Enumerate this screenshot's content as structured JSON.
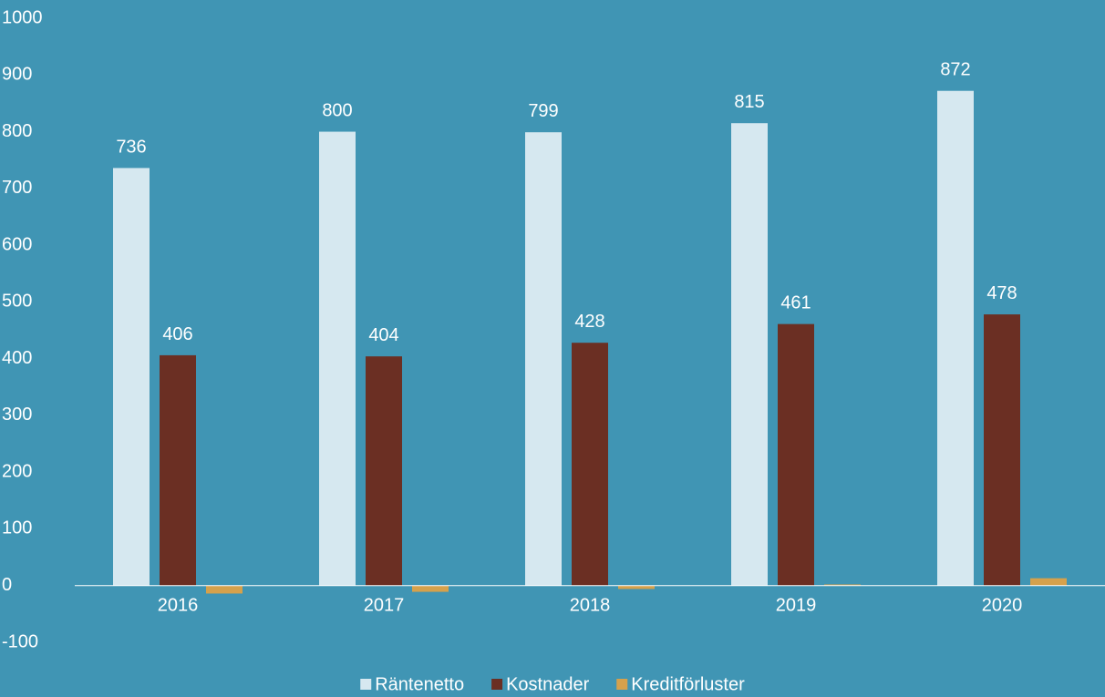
{
  "chart_data": {
    "type": "bar",
    "categories": [
      "2016",
      "2017",
      "2018",
      "2019",
      "2020"
    ],
    "series": [
      {
        "name": "Räntenetto",
        "values": [
          736,
          800,
          799,
          815,
          872
        ],
        "color": "#d6e8f0",
        "show_labels": true
      },
      {
        "name": "Kostnader",
        "values": [
          406,
          404,
          428,
          461,
          478
        ],
        "color": "#6b2f23",
        "show_labels": true
      },
      {
        "name": "Kreditförluster",
        "values": [
          -14,
          -11,
          -6,
          2,
          13
        ],
        "color": "#d5a14c",
        "show_labels": false
      }
    ],
    "ylim": [
      -100,
      1000
    ],
    "yticks": [
      -100,
      0,
      100,
      200,
      300,
      400,
      500,
      600,
      700,
      800,
      900,
      1000
    ],
    "grid": false,
    "legend_position": "bottom-center"
  },
  "colors": {
    "background": "#4095b4",
    "text": "#ffffff",
    "axis_line": "#ffffff"
  }
}
